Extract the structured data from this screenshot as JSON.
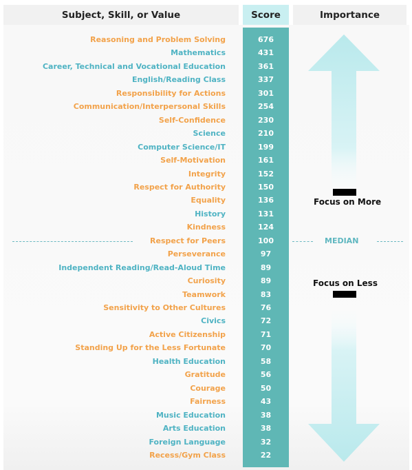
{
  "header": {
    "subject": "Subject, Skill, or Value",
    "score": "Score",
    "importance": "Importance"
  },
  "annotations": {
    "focus_more": "Focus on More",
    "focus_less": "Focus on Less",
    "median": "MEDIAN"
  },
  "colors": {
    "orange": "#f2a24a",
    "teal": "#4fb3c3",
    "score_column": "#5fb7b5",
    "score_header": "#c9eff1",
    "arrow": "#b9e9ec"
  },
  "chart_data": {
    "type": "table",
    "columns": [
      "Subject, Skill, or Value",
      "Score"
    ],
    "median_score": 100,
    "rows": [
      {
        "label": "Reasoning and Problem Solving",
        "score": 676,
        "color": "orange"
      },
      {
        "label": "Mathematics",
        "score": 431,
        "color": "teal"
      },
      {
        "label": "Career, Technical and Vocational Education",
        "score": 361,
        "color": "teal"
      },
      {
        "label": "English/Reading Class",
        "score": 337,
        "color": "teal"
      },
      {
        "label": "Responsibility for Actions",
        "score": 301,
        "color": "orange"
      },
      {
        "label": "Communication/Interpersonal Skills",
        "score": 254,
        "color": "orange"
      },
      {
        "label": "Self-Confidence",
        "score": 230,
        "color": "orange"
      },
      {
        "label": "Science",
        "score": 210,
        "color": "teal"
      },
      {
        "label": "Computer Science/IT",
        "score": 199,
        "color": "teal"
      },
      {
        "label": "Self-Motivation",
        "score": 161,
        "color": "orange"
      },
      {
        "label": "Integrity",
        "score": 152,
        "color": "orange"
      },
      {
        "label": "Respect for Authority",
        "score": 150,
        "color": "orange"
      },
      {
        "label": "Equality",
        "score": 136,
        "color": "orange"
      },
      {
        "label": "History",
        "score": 131,
        "color": "teal"
      },
      {
        "label": "Kindness",
        "score": 124,
        "color": "orange"
      },
      {
        "label": "Respect for Peers",
        "score": 100,
        "color": "orange"
      },
      {
        "label": "Perseverance",
        "score": 97,
        "color": "orange"
      },
      {
        "label": "Independent Reading/Read-Aloud Time",
        "score": 89,
        "color": "teal"
      },
      {
        "label": "Curiosity",
        "score": 89,
        "color": "orange"
      },
      {
        "label": "Teamwork",
        "score": 83,
        "color": "orange"
      },
      {
        "label": "Sensitivity to Other Cultures",
        "score": 76,
        "color": "orange"
      },
      {
        "label": "Civics",
        "score": 72,
        "color": "teal"
      },
      {
        "label": "Active Citizenship",
        "score": 71,
        "color": "orange"
      },
      {
        "label": "Standing Up for the Less Fortunate",
        "score": 70,
        "color": "orange"
      },
      {
        "label": "Health Education",
        "score": 58,
        "color": "teal"
      },
      {
        "label": "Gratitude",
        "score": 56,
        "color": "orange"
      },
      {
        "label": "Courage",
        "score": 50,
        "color": "orange"
      },
      {
        "label": "Fairness",
        "score": 43,
        "color": "orange"
      },
      {
        "label": "Music Education",
        "score": 38,
        "color": "teal"
      },
      {
        "label": "Arts Education",
        "score": 38,
        "color": "teal"
      },
      {
        "label": "Foreign Language",
        "score": 32,
        "color": "teal"
      },
      {
        "label": "Recess/Gym Class",
        "score": 22,
        "color": "orange"
      }
    ]
  }
}
